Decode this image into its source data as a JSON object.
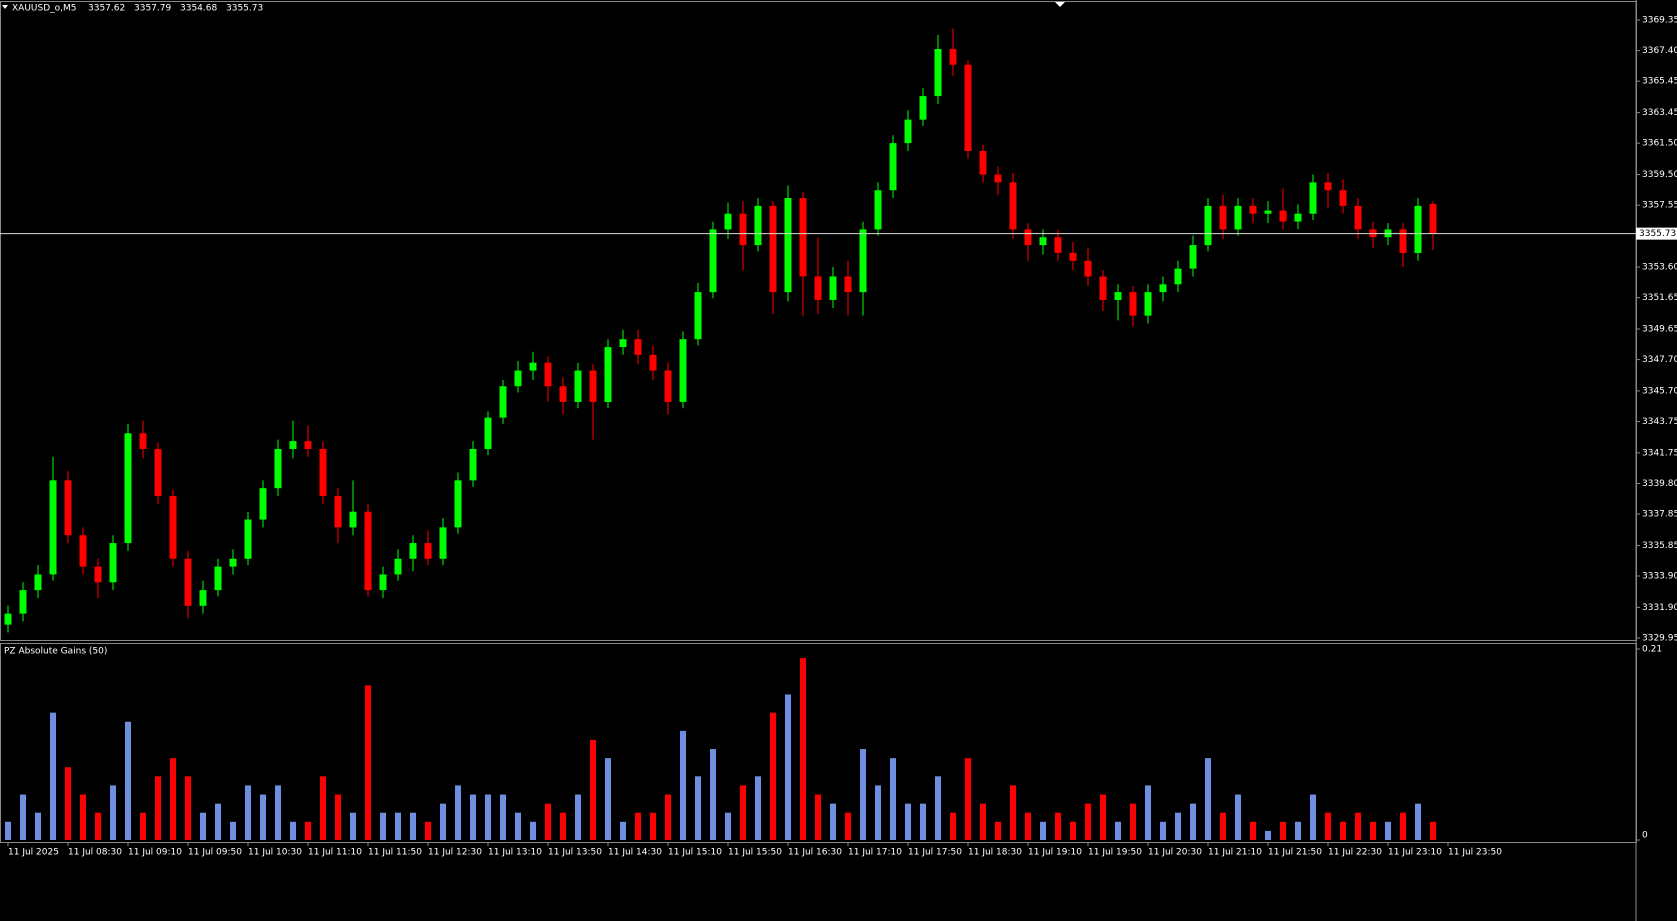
{
  "chart_data": [
    {
      "type": "candlestick",
      "title": "XAUUSD_o,M5",
      "header_values": [
        3357.62,
        3357.79,
        3354.68,
        3355.73
      ],
      "up_color": "#00ff00",
      "down_color": "#ff0000",
      "last_price": 3355.73,
      "ylim": [
        3329.82,
        3370.5
      ],
      "yticks": [
        3369.35,
        {
          "value": 3367.4,
          "label": "3367.40"
        },
        3365.45,
        3363.45,
        {
          "value": 3361.5,
          "label": "3361.50"
        },
        {
          "value": 3359.5,
          "label": "3359.50"
        },
        3357.55,
        {
          "value": 3353.6,
          "label": "3353.60"
        },
        3351.65,
        3349.65,
        {
          "value": 3347.7,
          "label": "3347.70"
        },
        {
          "value": 3345.7,
          "label": "3345.70"
        },
        3343.75,
        3341.75,
        {
          "value": 3339.8,
          "label": "3339.80"
        },
        3337.85,
        3335.85,
        {
          "value": 3333.9,
          "label": "3333.90"
        },
        {
          "value": 3331.9,
          "label": "3331.90"
        },
        3329.95
      ],
      "xtick_labels": [
        "11 Jul 2025",
        "11 Jul 08:30",
        "11 Jul 09:10",
        "11 Jul 09:50",
        "11 Jul 10:30",
        "11 Jul 11:10",
        "11 Jul 11:50",
        "11 Jul 12:30",
        "11 Jul 13:10",
        "11 Jul 13:50",
        "11 Jul 14:30",
        "11 Jul 15:10",
        "11 Jul 15:50",
        "11 Jul 16:30",
        "11 Jul 17:10",
        "11 Jul 17:50",
        "11 Jul 18:30",
        "11 Jul 19:10",
        "11 Jul 19:50",
        "11 Jul 20:30",
        "11 Jul 21:10",
        "11 Jul 21:50",
        "11 Jul 22:30",
        "11 Jul 23:10",
        "11 Jul 23:50"
      ],
      "ohlc": [
        [
          3330.8,
          3332,
          3330.3,
          3331.5
        ],
        [
          3331.5,
          3333.5,
          3331,
          3333
        ],
        [
          3333,
          3334.6,
          3332.5,
          3334
        ],
        [
          3334,
          3341.5,
          3333.6,
          3340
        ],
        [
          3340,
          3340.6,
          3336,
          3336.5
        ],
        [
          3336.5,
          3337,
          3334,
          3334.5
        ],
        [
          3334.5,
          3335,
          3332.5,
          3333.5
        ],
        [
          3333.5,
          3336.5,
          3333,
          3336
        ],
        [
          3336,
          3343.6,
          3335.5,
          3343
        ],
        [
          3343,
          3343.8,
          3341.4,
          3342
        ],
        [
          3342,
          3342.4,
          3338.5,
          3339
        ],
        [
          3339,
          3339.4,
          3334.5,
          3335
        ],
        [
          3335,
          3335.5,
          3331.2,
          3332
        ],
        [
          3332,
          3333.6,
          3331.5,
          3333
        ],
        [
          3333,
          3335,
          3332.6,
          3334.5
        ],
        [
          3334.5,
          3335.6,
          3334,
          3335
        ],
        [
          3335,
          3338,
          3334.6,
          3337.5
        ],
        [
          3337.5,
          3340,
          3337,
          3339.5
        ],
        [
          3339.5,
          3342.6,
          3339,
          3342
        ],
        [
          3342,
          3343.8,
          3341.4,
          3342.5
        ],
        [
          3342.5,
          3343.5,
          3341.5,
          3342
        ],
        [
          3342,
          3342.5,
          3338.5,
          3339
        ],
        [
          3339,
          3339.5,
          3336,
          3337
        ],
        [
          3337,
          3340,
          3336.5,
          3338
        ],
        [
          3338,
          3338.5,
          3332.6,
          3333
        ],
        [
          3333,
          3334.5,
          3332.5,
          3334
        ],
        [
          3334,
          3335.6,
          3333.6,
          3335
        ],
        [
          3335,
          3336.5,
          3334.2,
          3336
        ],
        [
          3336,
          3336.8,
          3334.6,
          3335
        ],
        [
          3335,
          3337.6,
          3334.6,
          3337
        ],
        [
          3337,
          3340.5,
          3336.6,
          3340
        ],
        [
          3340,
          3342.5,
          3339.6,
          3342
        ],
        [
          3342,
          3344.4,
          3341.6,
          3344
        ],
        [
          3344,
          3346.4,
          3343.6,
          3346
        ],
        [
          3346,
          3347.6,
          3345.6,
          3347
        ],
        [
          3347,
          3348.2,
          3346.4,
          3347.5
        ],
        [
          3347.5,
          3347.9,
          3345,
          3346
        ],
        [
          3346,
          3346.6,
          3344.2,
          3345
        ],
        [
          3345,
          3347.5,
          3344.6,
          3347
        ],
        [
          3347,
          3347.4,
          3342.6,
          3345
        ],
        [
          3345,
          3349,
          3344.6,
          3348.5
        ],
        [
          3348.5,
          3349.6,
          3348,
          3349
        ],
        [
          3349,
          3349.6,
          3347.4,
          3348
        ],
        [
          3348,
          3348.6,
          3346.4,
          3347
        ],
        [
          3347,
          3347.5,
          3344.2,
          3345
        ],
        [
          3345,
          3349.5,
          3344.6,
          3349
        ],
        [
          3349,
          3352.6,
          3348.6,
          3352
        ],
        [
          3352,
          3356.5,
          3351.6,
          3356
        ],
        [
          3356,
          3357.7,
          3355.4,
          3357
        ],
        [
          3357,
          3357.8,
          3353.4,
          3355
        ],
        [
          3355,
          3358,
          3354.6,
          3357.5
        ],
        [
          3357.5,
          3357.8,
          3350.6,
          3352
        ],
        [
          3352,
          3358.8,
          3351.4,
          3358
        ],
        [
          3358,
          3358.4,
          3350.5,
          3353
        ],
        [
          3353,
          3355.5,
          3350.6,
          3351.5
        ],
        [
          3351.5,
          3353.6,
          3351,
          3353
        ],
        [
          3353,
          3354,
          3350.5,
          3352
        ],
        [
          3352,
          3356.5,
          3350.5,
          3356
        ],
        [
          3356,
          3359,
          3355.6,
          3358.5
        ],
        [
          3358.5,
          3362,
          3358,
          3361.5
        ],
        [
          3361.5,
          3363.6,
          3361,
          3363
        ],
        [
          3363,
          3365,
          3362.6,
          3364.5
        ],
        [
          3364.5,
          3368.4,
          3364,
          3367.5
        ],
        [
          3367.5,
          3368.8,
          3365.8,
          3366.5
        ],
        [
          3366.5,
          3366.8,
          3360.5,
          3361
        ],
        [
          3361,
          3361.4,
          3359,
          3359.5
        ],
        [
          3359.5,
          3360,
          3358.2,
          3359
        ],
        [
          3359,
          3359.6,
          3355.4,
          3356
        ],
        [
          3356,
          3356.4,
          3354,
          3355
        ],
        [
          3355,
          3356,
          3354.4,
          3355.5
        ],
        [
          3355.5,
          3356,
          3354,
          3354.5
        ],
        [
          3354.5,
          3355.2,
          3353.4,
          3354
        ],
        [
          3354,
          3354.8,
          3352.4,
          3353
        ],
        [
          3353,
          3353.4,
          3350.8,
          3351.5
        ],
        [
          3351.5,
          3352.5,
          3350.2,
          3352
        ],
        [
          3352,
          3352.4,
          3349.8,
          3350.5
        ],
        [
          3350.5,
          3352.5,
          3350,
          3352
        ],
        [
          3352,
          3353,
          3351.4,
          3352.5
        ],
        [
          3352.5,
          3354,
          3352,
          3353.5
        ],
        [
          3353.5,
          3355.6,
          3353,
          3355
        ],
        [
          3355,
          3358,
          3354.6,
          3357.5
        ],
        [
          3357.5,
          3358.2,
          3355.4,
          3356
        ],
        [
          3356,
          3358,
          3355.6,
          3357.5
        ],
        [
          3357.5,
          3358,
          3356.4,
          3357
        ],
        [
          3357,
          3357.8,
          3356.4,
          3357.2
        ],
        [
          3357.2,
          3358.6,
          3356,
          3356.5
        ],
        [
          3356.5,
          3357.6,
          3356,
          3357
        ],
        [
          3357,
          3359.5,
          3356.6,
          3359
        ],
        [
          3359,
          3359.6,
          3357.4,
          3358.5
        ],
        [
          3358.5,
          3359.2,
          3357,
          3357.5
        ],
        [
          3357.5,
          3358,
          3355.4,
          3356
        ],
        [
          3356,
          3356.5,
          3354.8,
          3355.5
        ],
        [
          3355.5,
          3356.4,
          3355,
          3356
        ],
        [
          3356,
          3356.4,
          3353.6,
          3354.5
        ],
        [
          3354.5,
          3358,
          3354,
          3357.5
        ],
        [
          3357.62,
          3357.79,
          3354.68,
          3355.73
        ]
      ]
    },
    {
      "type": "bar",
      "title": "PZ Absolute Gains (50)",
      "up_color": "#6f8fe0",
      "down_color": "#ff0000",
      "ylim": [
        0,
        0.21
      ],
      "yticks": [
        0.21,
        0
      ],
      "values": [
        0.02,
        0.05,
        0.03,
        0.14,
        0.08,
        0.05,
        0.03,
        0.06,
        0.13,
        0.03,
        0.07,
        0.09,
        0.07,
        0.03,
        0.04,
        0.02,
        0.06,
        0.05,
        0.06,
        0.02,
        0.02,
        0.07,
        0.05,
        0.03,
        0.17,
        0.03,
        0.03,
        0.03,
        0.02,
        0.04,
        0.06,
        0.05,
        0.05,
        0.05,
        0.03,
        0.02,
        0.04,
        0.03,
        0.05,
        0.11,
        0.09,
        0.02,
        0.03,
        0.03,
        0.05,
        0.12,
        0.07,
        0.1,
        0.03,
        0.06,
        0.07,
        0.14,
        0.16,
        0.2,
        0.05,
        0.04,
        0.03,
        0.1,
        0.06,
        0.09,
        0.04,
        0.04,
        0.07,
        0.03,
        0.09,
        0.04,
        0.02,
        0.06,
        0.03,
        0.02,
        0.03,
        0.02,
        0.04,
        0.05,
        0.02,
        0.04,
        0.06,
        0.02,
        0.03,
        0.04,
        0.09,
        0.03,
        0.05,
        0.02,
        0.01,
        0.02,
        0.02,
        0.05,
        0.03,
        0.02,
        0.03,
        0.02,
        0.02,
        0.03,
        0.04,
        0.02
      ]
    }
  ]
}
